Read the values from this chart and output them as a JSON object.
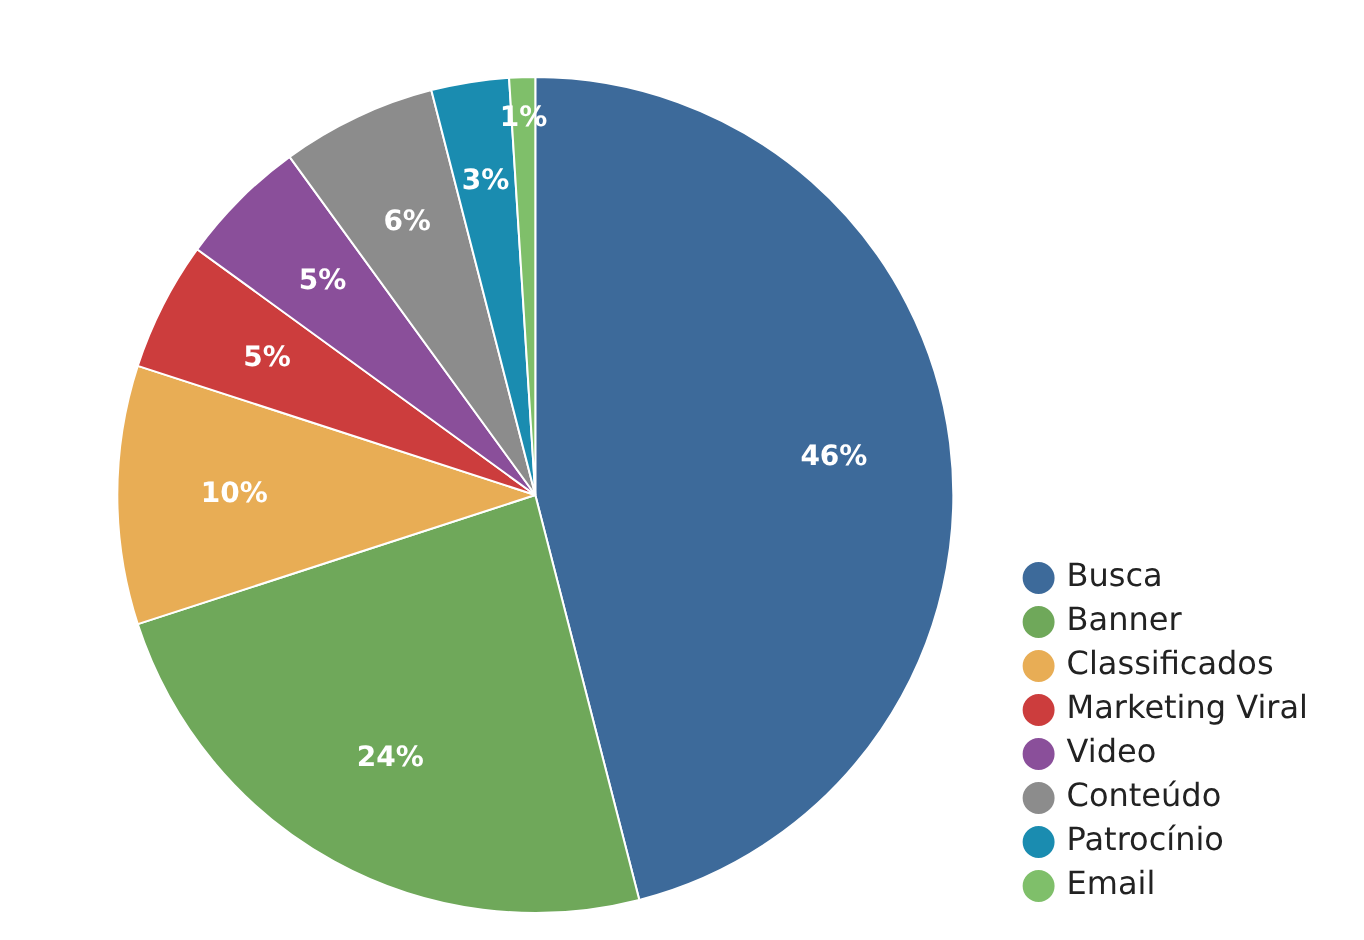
{
  "chart_data": {
    "type": "pie",
    "categories": [
      "Busca",
      "Banner",
      "Classificados",
      "Marketing Viral",
      "Video",
      "Conteúdo",
      "Patrocínio",
      "Email"
    ],
    "values": [
      46,
      24,
      10,
      5,
      5,
      6,
      3,
      1
    ],
    "colors": [
      "#3d6a9a",
      "#6fa85a",
      "#e8ad55",
      "#cc3d3d",
      "#8a4f9a",
      "#8c8c8c",
      "#1a8cb0",
      "#7fbf6a"
    ],
    "value_labels": [
      "46%",
      "24%",
      "10%",
      "5%",
      "5%",
      "6%",
      "3%",
      "1%"
    ],
    "legend": "bottom right"
  }
}
